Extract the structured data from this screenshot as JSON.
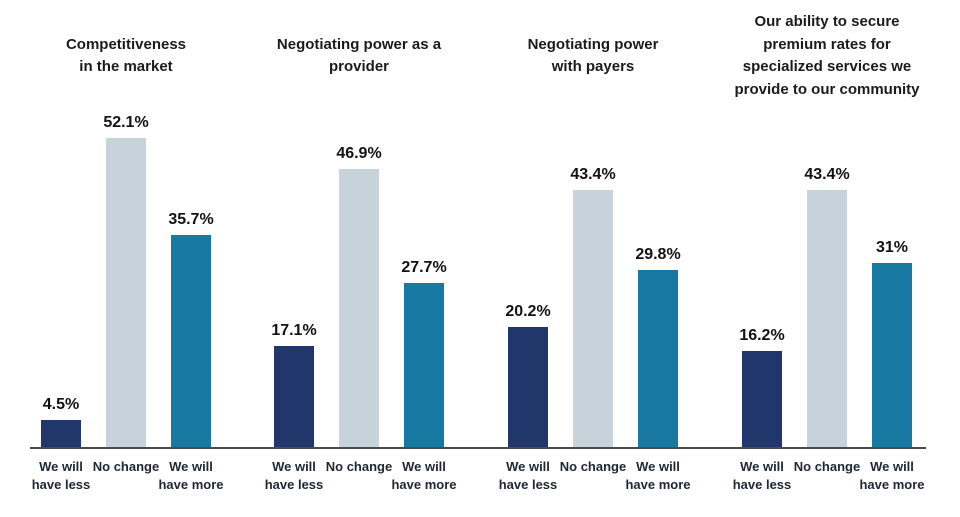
{
  "colors": {
    "we_will_have_less": "#21366b",
    "no_change": "#c7d3db",
    "we_will_have_more": "#1779a1",
    "axis_line": "#4a4a4a",
    "title_text": "#1b1b1b",
    "category_text": "#1e2733",
    "value_text": "#121212",
    "background": "#ffffff"
  },
  "chart_data": {
    "type": "bar",
    "unit": "%",
    "title": "",
    "xlabel": "",
    "ylabel": "",
    "ylim": [
      0,
      55
    ],
    "grid": false,
    "legend": "none",
    "value_labels_shown": true,
    "bar_categories": [
      "We will\nhave less",
      "No change",
      "We will\nhave more"
    ],
    "series_colors": [
      "#21366b",
      "#c7d3db",
      "#1779a1"
    ],
    "groups": [
      {
        "title": "Competitiveness\nin the market",
        "values": [
          4.5,
          52.1,
          35.7
        ],
        "labels": [
          "4.5%",
          "52.1%",
          "35.7%"
        ]
      },
      {
        "title": "Negotiating power as a\nprovider",
        "values": [
          17.1,
          46.9,
          27.7
        ],
        "labels": [
          "17.1%",
          "46.9%",
          "27.7%"
        ]
      },
      {
        "title": "Negotiating power\nwith payers",
        "values": [
          20.2,
          43.4,
          29.8
        ],
        "labels": [
          "20.2%",
          "43.4%",
          "29.8%"
        ]
      },
      {
        "title": "Our ability to secure\npremium rates for\nspecialized services we\nprovide to our community",
        "values": [
          16.2,
          43.4,
          31
        ],
        "labels": [
          "16.2%",
          "43.4%",
          "31%"
        ]
      }
    ]
  }
}
